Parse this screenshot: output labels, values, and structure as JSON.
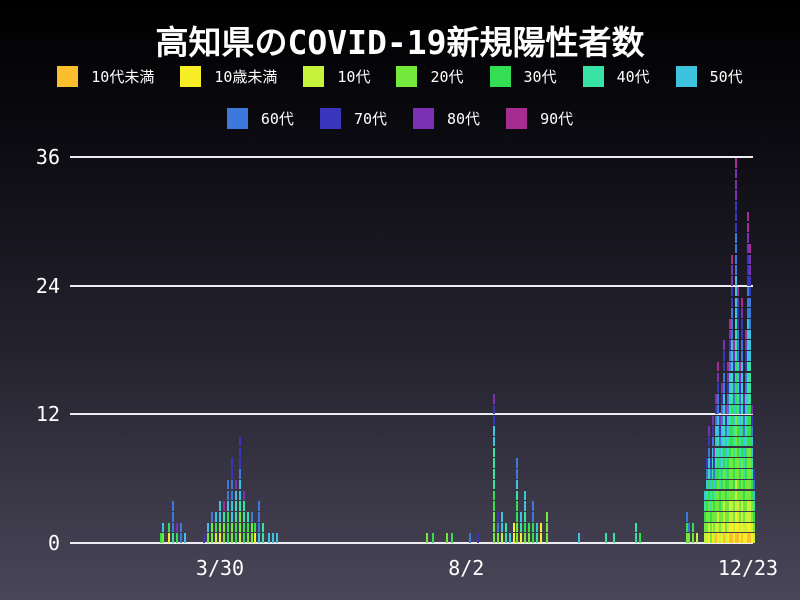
{
  "title": "高知県のCOVID-19新規陽性者数",
  "chart_data": {
    "type": "bar",
    "stacked": true,
    "title": "高知県のCOVID-19新規陽性者数",
    "xlabel": "",
    "ylabel": "",
    "ylim": [
      0,
      36
    ],
    "yticks": [
      0,
      12,
      24,
      36
    ],
    "xticks": [
      "3/30",
      "8/2",
      "12/23"
    ],
    "grid": "horizontal-only",
    "legend_position": "top",
    "x_unit": "date (month/day, year 2020)",
    "groups": [
      {
        "name": "10代未満",
        "color": "#fbbe2e"
      },
      {
        "name": "10歳未満",
        "color": "#f8ee26"
      },
      {
        "name": "10代",
        "color": "#c6f23b"
      },
      {
        "name": "20代",
        "color": "#74e93c"
      },
      {
        "name": "30代",
        "color": "#33de52"
      },
      {
        "name": "40代",
        "color": "#38e2a5"
      },
      {
        "name": "50代",
        "color": "#3ec3de"
      },
      {
        "name": "60代",
        "color": "#3d79da"
      },
      {
        "name": "70代",
        "color": "#3a35bb"
      },
      {
        "name": "80代",
        "color": "#7c30b4"
      },
      {
        "name": "90代",
        "color": "#a52c90"
      }
    ],
    "legend_rows": [
      [
        0,
        1,
        2,
        3,
        4,
        5,
        6
      ],
      [
        7,
        8,
        9,
        10
      ]
    ],
    "bars_note": "each entry = [date, counts per age group in groups[] order]; counts stack bottom-to-top",
    "bars": [
      [
        "2/29",
        [
          0,
          0,
          0,
          0,
          1,
          0,
          0,
          0,
          0,
          0,
          0
        ]
      ],
      [
        "3/1",
        [
          0,
          0,
          0,
          1,
          0,
          0,
          1,
          0,
          0,
          0,
          0
        ]
      ],
      [
        "3/4",
        [
          0,
          1,
          0,
          0,
          1,
          0,
          0,
          0,
          0,
          0,
          0
        ]
      ],
      [
        "3/6",
        [
          0,
          0,
          0,
          0,
          0,
          1,
          0,
          3,
          0,
          0,
          0
        ]
      ],
      [
        "3/8",
        [
          0,
          0,
          0,
          0,
          1,
          0,
          0,
          0,
          0,
          1,
          0
        ]
      ],
      [
        "3/10",
        [
          0,
          0,
          0,
          0,
          0,
          0,
          0,
          2,
          0,
          0,
          0
        ]
      ],
      [
        "3/12",
        [
          0,
          0,
          0,
          0,
          0,
          0,
          1,
          0,
          0,
          0,
          0
        ]
      ],
      [
        "3/22",
        [
          0,
          0,
          0,
          0,
          0,
          0,
          0,
          0,
          1,
          0,
          0
        ]
      ],
      [
        "3/24",
        [
          0,
          0,
          0,
          1,
          0,
          0,
          1,
          0,
          0,
          0,
          0
        ]
      ],
      [
        "3/26",
        [
          0,
          0,
          0,
          2,
          0,
          0,
          0,
          1,
          0,
          0,
          0
        ]
      ],
      [
        "3/28",
        [
          0,
          0,
          1,
          0,
          1,
          0,
          1,
          0,
          0,
          0,
          0
        ]
      ],
      [
        "3/30",
        [
          0,
          1,
          0,
          1,
          0,
          0,
          2,
          0,
          0,
          0,
          0
        ]
      ],
      [
        "4/1",
        [
          0,
          0,
          0,
          2,
          0,
          1,
          0,
          0,
          0,
          0,
          1
        ]
      ],
      [
        "4/3",
        [
          0,
          0,
          0,
          0,
          3,
          0,
          1,
          2,
          0,
          0,
          0
        ]
      ],
      [
        "4/5",
        [
          0,
          0,
          0,
          2,
          0,
          0,
          2,
          2,
          2,
          0,
          0
        ]
      ],
      [
        "4/7",
        [
          0,
          0,
          0,
          0,
          2,
          2,
          1,
          0,
          0,
          1,
          0
        ]
      ],
      [
        "4/9",
        [
          0,
          0,
          1,
          2,
          0,
          1,
          2,
          1,
          3,
          0,
          0
        ]
      ],
      [
        "4/11",
        [
          0,
          0,
          0,
          0,
          2,
          2,
          0,
          0,
          0,
          1,
          0
        ]
      ],
      [
        "4/13",
        [
          0,
          0,
          0,
          1,
          1,
          1,
          0,
          0,
          0,
          0,
          0
        ]
      ],
      [
        "4/15",
        [
          0,
          0,
          0,
          2,
          0,
          0,
          0,
          1,
          0,
          0,
          0
        ]
      ],
      [
        "4/17",
        [
          0,
          1,
          0,
          0,
          1,
          0,
          0,
          0,
          0,
          0,
          0
        ]
      ],
      [
        "4/19",
        [
          0,
          0,
          0,
          0,
          0,
          0,
          1,
          3,
          0,
          0,
          0
        ]
      ],
      [
        "4/21",
        [
          0,
          0,
          0,
          0,
          0,
          2,
          0,
          0,
          0,
          0,
          0
        ]
      ],
      [
        "4/24",
        [
          0,
          0,
          0,
          0,
          0,
          0,
          1,
          0,
          0,
          0,
          0
        ]
      ],
      [
        "4/26",
        [
          0,
          0,
          0,
          0,
          0,
          0,
          1,
          0,
          0,
          0,
          0
        ]
      ],
      [
        "4/28",
        [
          0,
          0,
          0,
          0,
          0,
          0,
          1,
          0,
          0,
          0,
          0
        ]
      ],
      [
        "7/13",
        [
          0,
          0,
          0,
          1,
          0,
          0,
          0,
          0,
          0,
          0,
          0
        ]
      ],
      [
        "7/16",
        [
          0,
          0,
          0,
          0,
          1,
          0,
          0,
          0,
          0,
          0,
          0
        ]
      ],
      [
        "7/23",
        [
          0,
          0,
          0,
          1,
          0,
          0,
          0,
          0,
          0,
          0,
          0
        ]
      ],
      [
        "7/26",
        [
          0,
          0,
          0,
          0,
          1,
          0,
          0,
          0,
          0,
          0,
          0
        ]
      ],
      [
        "8/4",
        [
          0,
          0,
          0,
          0,
          0,
          0,
          0,
          1,
          0,
          0,
          0
        ]
      ],
      [
        "8/8",
        [
          0,
          0,
          0,
          0,
          0,
          0,
          0,
          0,
          1,
          0,
          0
        ]
      ],
      [
        "8/16",
        [
          0,
          0,
          0,
          3,
          2,
          4,
          2,
          0,
          2,
          1,
          0
        ]
      ],
      [
        "8/18",
        [
          0,
          0,
          0,
          1,
          0,
          0,
          0,
          1,
          1,
          0,
          0
        ]
      ],
      [
        "8/20",
        [
          0,
          0,
          1,
          0,
          0,
          0,
          2,
          0,
          0,
          0,
          0
        ]
      ],
      [
        "8/22",
        [
          0,
          0,
          0,
          0,
          0,
          2,
          0,
          0,
          0,
          0,
          0
        ]
      ],
      [
        "8/24",
        [
          0,
          0,
          0,
          0,
          0,
          0,
          1,
          0,
          0,
          0,
          0
        ]
      ],
      [
        "8/26",
        [
          0,
          2,
          0,
          0,
          0,
          0,
          0,
          0,
          0,
          0,
          0
        ]
      ],
      [
        "8/28",
        [
          0,
          0,
          0,
          2,
          2,
          1,
          1,
          2,
          0,
          0,
          0
        ]
      ],
      [
        "8/30",
        [
          0,
          1,
          0,
          0,
          0,
          1,
          1,
          0,
          0,
          0,
          0
        ]
      ],
      [
        "9/1",
        [
          0,
          0,
          0,
          1,
          1,
          1,
          2,
          0,
          0,
          0,
          0
        ]
      ],
      [
        "9/3",
        [
          0,
          0,
          0,
          1,
          1,
          0,
          0,
          0,
          0,
          0,
          0
        ]
      ],
      [
        "9/5",
        [
          0,
          0,
          0,
          0,
          2,
          0,
          0,
          2,
          0,
          0,
          0
        ]
      ],
      [
        "9/7",
        [
          0,
          0,
          0,
          0,
          0,
          1,
          1,
          0,
          0,
          0,
          0
        ]
      ],
      [
        "9/9",
        [
          0,
          2,
          0,
          0,
          0,
          0,
          0,
          0,
          0,
          0,
          0
        ]
      ],
      [
        "9/12",
        [
          0,
          0,
          0,
          3,
          0,
          0,
          0,
          0,
          0,
          0,
          0
        ]
      ],
      [
        "9/28",
        [
          0,
          0,
          0,
          0,
          0,
          0,
          1,
          0,
          0,
          0,
          0
        ]
      ],
      [
        "10/12",
        [
          0,
          0,
          0,
          0,
          0,
          1,
          0,
          0,
          0,
          0,
          0
        ]
      ],
      [
        "10/16",
        [
          0,
          0,
          0,
          0,
          0,
          1,
          0,
          0,
          0,
          0,
          0
        ]
      ],
      [
        "10/27",
        [
          0,
          0,
          0,
          0,
          0,
          2,
          0,
          0,
          0,
          0,
          0
        ]
      ],
      [
        "10/29",
        [
          0,
          0,
          0,
          0,
          1,
          0,
          0,
          0,
          0,
          0,
          0
        ]
      ],
      [
        "11/22",
        [
          0,
          0,
          0,
          1,
          1,
          0,
          0,
          1,
          0,
          0,
          0
        ]
      ],
      [
        "11/23",
        [
          0,
          0,
          0,
          1,
          0,
          0,
          0,
          1,
          0,
          0,
          0
        ]
      ],
      [
        "11/25",
        [
          0,
          0,
          0,
          1,
          1,
          0,
          0,
          0,
          0,
          0,
          0
        ]
      ],
      [
        "11/27",
        [
          0,
          0,
          1,
          0,
          0,
          0,
          0,
          0,
          0,
          0,
          0
        ]
      ],
      [
        "12/1",
        [
          0,
          0,
          1,
          1,
          1,
          1,
          1,
          0,
          0,
          0,
          0
        ]
      ],
      [
        "12/2",
        [
          0,
          0,
          1,
          2,
          1,
          1,
          1,
          1,
          1,
          0,
          0
        ]
      ],
      [
        "12/3",
        [
          0,
          1,
          1,
          2,
          2,
          1,
          1,
          1,
          1,
          1,
          0
        ]
      ],
      [
        "12/4",
        [
          0,
          0,
          0,
          2,
          1,
          2,
          1,
          1,
          1,
          0,
          0
        ]
      ],
      [
        "12/5",
        [
          0,
          1,
          1,
          2,
          2,
          2,
          1,
          1,
          1,
          1,
          0
        ]
      ],
      [
        "12/6",
        [
          0,
          0,
          1,
          2,
          1,
          1,
          1,
          1,
          1,
          1,
          0
        ]
      ],
      [
        "12/7",
        [
          1,
          0,
          1,
          3,
          2,
          2,
          2,
          1,
          1,
          1,
          0
        ]
      ],
      [
        "12/8",
        [
          0,
          1,
          2,
          3,
          2,
          2,
          2,
          2,
          1,
          1,
          1
        ]
      ],
      [
        "12/9",
        [
          0,
          0,
          1,
          2,
          2,
          2,
          2,
          1,
          1,
          1,
          0
        ]
      ],
      [
        "12/10",
        [
          0,
          1,
          1,
          3,
          2,
          2,
          2,
          2,
          1,
          1,
          0
        ]
      ],
      [
        "12/11",
        [
          1,
          1,
          2,
          3,
          2,
          3,
          2,
          2,
          2,
          1,
          0
        ]
      ],
      [
        "12/12",
        [
          0,
          0,
          1,
          3,
          2,
          2,
          2,
          1,
          1,
          0,
          1
        ]
      ],
      [
        "12/13",
        [
          0,
          1,
          1,
          3,
          3,
          2,
          2,
          2,
          1,
          1,
          1
        ]
      ],
      [
        "12/14",
        [
          1,
          1,
          2,
          4,
          3,
          3,
          2,
          2,
          1,
          1,
          1
        ]
      ],
      [
        "12/15",
        [
          1,
          1,
          2,
          5,
          4,
          3,
          3,
          3,
          2,
          2,
          1
        ]
      ],
      [
        "12/16",
        [
          0,
          1,
          1,
          3,
          3,
          3,
          2,
          2,
          2,
          1,
          1
        ]
      ],
      [
        "12/17",
        [
          1,
          2,
          3,
          6,
          5,
          4,
          4,
          4,
          3,
          3,
          1
        ]
      ],
      [
        "12/18",
        [
          1,
          1,
          2,
          4,
          3,
          3,
          3,
          3,
          2,
          1,
          1
        ]
      ],
      [
        "12/19",
        [
          0,
          1,
          1,
          3,
          2,
          3,
          2,
          2,
          1,
          1,
          1
        ]
      ],
      [
        "12/20",
        [
          1,
          1,
          2,
          4,
          3,
          3,
          3,
          2,
          2,
          1,
          1
        ]
      ],
      [
        "12/21",
        [
          0,
          1,
          1,
          2,
          2,
          2,
          2,
          2,
          1,
          1,
          0
        ]
      ],
      [
        "12/22",
        [
          0,
          1,
          2,
          3,
          3,
          3,
          2,
          2,
          2,
          1,
          1
        ]
      ],
      [
        "12/23",
        [
          1,
          1,
          2,
          5,
          4,
          4,
          4,
          3,
          3,
          2,
          2
        ]
      ],
      [
        "12/24",
        [
          1,
          1,
          2,
          5,
          4,
          4,
          3,
          3,
          2,
          2,
          1
        ]
      ],
      [
        "12/25",
        [
          0,
          1,
          1,
          2,
          2,
          2,
          2,
          1,
          1,
          1,
          0
        ]
      ],
      [
        "12/26",
        [
          0,
          0,
          1,
          1,
          1,
          1,
          1,
          1,
          1,
          0,
          0
        ]
      ]
    ]
  },
  "colors": {
    "background_top": "#000000",
    "background_bottom": "#4a4659",
    "gridline": "#edecf2",
    "text": "#ffffff"
  }
}
